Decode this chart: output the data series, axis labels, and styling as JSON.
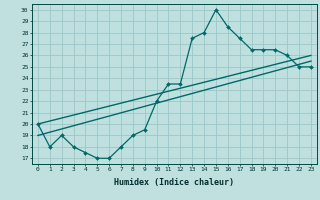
{
  "xlabel": "Humidex (Indice chaleur)",
  "bg_color": "#c0e0e0",
  "grid_color": "#98c8c8",
  "line_color": "#006868",
  "xlim": [
    -0.5,
    23.5
  ],
  "ylim": [
    16.5,
    30.5
  ],
  "yticks": [
    17,
    18,
    19,
    20,
    21,
    22,
    23,
    24,
    25,
    26,
    27,
    28,
    29,
    30
  ],
  "xticks": [
    0,
    1,
    2,
    3,
    4,
    5,
    6,
    7,
    8,
    9,
    10,
    11,
    12,
    13,
    14,
    15,
    16,
    17,
    18,
    19,
    20,
    21,
    22,
    23
  ],
  "line1_x": [
    0,
    1,
    2,
    3,
    4,
    5,
    6,
    7,
    8,
    9,
    10,
    11,
    12,
    13,
    14,
    15,
    16,
    17,
    18,
    19,
    20,
    21,
    22,
    23
  ],
  "line1_y": [
    20.0,
    18.0,
    19.0,
    18.0,
    17.5,
    17.0,
    17.0,
    18.0,
    19.0,
    19.5,
    22.0,
    23.5,
    23.5,
    27.5,
    28.0,
    30.0,
    28.5,
    27.5,
    26.5,
    26.5,
    26.5,
    26.0,
    25.0,
    25.0
  ],
  "line2_x": [
    0,
    23
  ],
  "line2_y": [
    19.0,
    25.5
  ],
  "line3_x": [
    0,
    23
  ],
  "line3_y": [
    20.0,
    26.0
  ]
}
